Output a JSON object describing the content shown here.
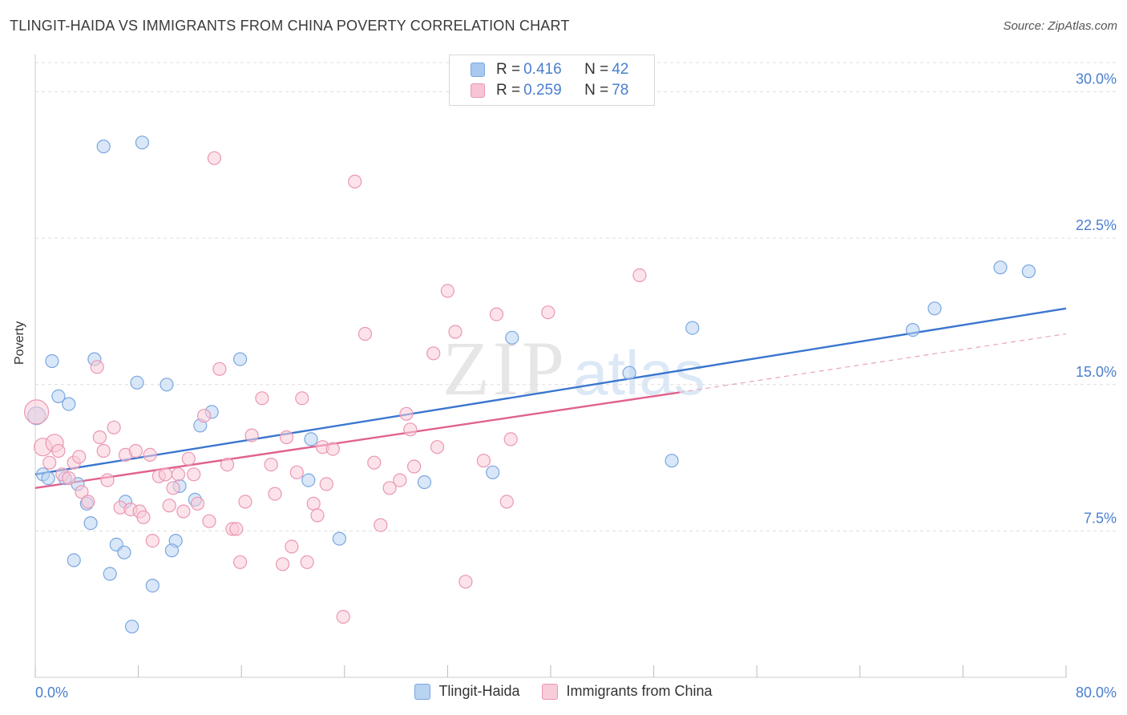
{
  "header": {
    "title": "TLINGIT-HAIDA VS IMMIGRANTS FROM CHINA POVERTY CORRELATION CHART",
    "source": "Source: ZipAtlas.com"
  },
  "watermark": {
    "zip": "ZIP",
    "atlas": "atlas"
  },
  "legend_top": {
    "rows": [
      {
        "r_label": "R =",
        "r_value": "0.416",
        "n_label": "N =",
        "n_value": "42",
        "color": "#a9c8f0",
        "border": "#7aa7e0"
      },
      {
        "r_label": "R =",
        "r_value": "0.259",
        "n_label": "N =",
        "n_value": "78",
        "color": "#f8c3d3",
        "border": "#ea97b2"
      }
    ]
  },
  "legend_bottom": {
    "items": [
      {
        "label": "Tlingit-Haida",
        "color": "#b9d3f3",
        "border": "#7aa7e0"
      },
      {
        "label": "Immigrants from China",
        "color": "#f9ccd9",
        "border": "#ea97b2"
      }
    ]
  },
  "chart_data": {
    "type": "scatter",
    "title": "TLINGIT-HAIDA VS IMMIGRANTS FROM CHINA POVERTY CORRELATION CHART",
    "xlabel": "",
    "ylabel": "Poverty",
    "xlim": [
      0,
      80
    ],
    "ylim": [
      0,
      31.5
    ],
    "x_tick_labels": [
      "0.0%",
      "80.0%"
    ],
    "y_ticks": [
      7.5,
      15.0,
      22.5,
      30.0
    ],
    "y_tick_labels": [
      "7.5%",
      "15.0%",
      "22.5%",
      "30.0%"
    ],
    "grid": "horizontal-dashed",
    "legend_position": "top-center",
    "series": [
      {
        "name": "Tlingit-Haida",
        "color": "#7aa7e0",
        "fill": "#b9d3f3",
        "trend": {
          "x": [
            0,
            80
          ],
          "y": [
            10.4,
            18.9
          ],
          "color": "#3a76cf"
        },
        "points": [
          [
            0.1,
            13.4
          ],
          [
            0.6,
            10.4
          ],
          [
            1.3,
            16.2
          ],
          [
            1.0,
            10.2
          ],
          [
            1.8,
            14.4
          ],
          [
            2.6,
            14.0
          ],
          [
            2.3,
            10.2
          ],
          [
            3.3,
            9.9
          ],
          [
            3.0,
            6.0
          ],
          [
            4.0,
            8.9
          ],
          [
            4.6,
            16.3
          ],
          [
            4.3,
            7.9
          ],
          [
            5.3,
            27.2
          ],
          [
            5.8,
            5.3
          ],
          [
            6.3,
            6.8
          ],
          [
            7.0,
            9.0
          ],
          [
            6.9,
            6.4
          ],
          [
            7.9,
            15.1
          ],
          [
            8.3,
            27.4
          ],
          [
            7.5,
            2.6
          ],
          [
            9.1,
            4.7
          ],
          [
            10.2,
            15.0
          ],
          [
            11.2,
            9.8
          ],
          [
            10.9,
            7.0
          ],
          [
            10.6,
            6.5
          ],
          [
            12.4,
            9.1
          ],
          [
            12.8,
            12.9
          ],
          [
            13.7,
            13.6
          ],
          [
            15.9,
            16.3
          ],
          [
            21.4,
            12.2
          ],
          [
            21.2,
            10.1
          ],
          [
            23.6,
            7.1
          ],
          [
            30.2,
            10.0
          ],
          [
            35.5,
            10.5
          ],
          [
            37.0,
            17.4
          ],
          [
            46.1,
            15.6
          ],
          [
            49.4,
            11.1
          ],
          [
            51.0,
            17.9
          ],
          [
            68.1,
            17.8
          ],
          [
            69.8,
            18.9
          ],
          [
            74.9,
            21.0
          ],
          [
            77.1,
            20.8
          ]
        ]
      },
      {
        "name": "Immigrants from China",
        "color": "#ea97b2",
        "fill": "#f9ccd9",
        "trend": {
          "x": [
            0,
            50
          ],
          "y": [
            9.7,
            14.6
          ],
          "color": "#e0628e"
        },
        "trend_extension": {
          "x": [
            50,
            80
          ],
          "y": [
            14.6,
            17.6
          ],
          "color": "#e8a3ba"
        },
        "points": [
          [
            0.1,
            13.6
          ],
          [
            0.6,
            11.8
          ],
          [
            1.1,
            11.0
          ],
          [
            1.5,
            12.0
          ],
          [
            1.8,
            11.6
          ],
          [
            2.1,
            10.4
          ],
          [
            2.6,
            10.2
          ],
          [
            3.0,
            11.0
          ],
          [
            3.4,
            11.3
          ],
          [
            3.6,
            9.5
          ],
          [
            4.1,
            9.0
          ],
          [
            4.8,
            15.9
          ],
          [
            5.0,
            12.3
          ],
          [
            5.3,
            11.6
          ],
          [
            5.6,
            10.1
          ],
          [
            6.1,
            12.8
          ],
          [
            6.6,
            8.7
          ],
          [
            7.0,
            11.4
          ],
          [
            7.4,
            8.6
          ],
          [
            7.8,
            11.6
          ],
          [
            8.1,
            8.5
          ],
          [
            8.4,
            8.2
          ],
          [
            8.9,
            11.4
          ],
          [
            9.1,
            7.0
          ],
          [
            9.6,
            10.3
          ],
          [
            10.1,
            10.4
          ],
          [
            10.4,
            8.8
          ],
          [
            10.7,
            9.7
          ],
          [
            11.1,
            10.4
          ],
          [
            11.5,
            8.5
          ],
          [
            11.9,
            11.2
          ],
          [
            12.3,
            10.4
          ],
          [
            12.6,
            8.9
          ],
          [
            13.1,
            13.4
          ],
          [
            13.5,
            8.0
          ],
          [
            13.9,
            26.6
          ],
          [
            14.3,
            15.8
          ],
          [
            14.9,
            10.9
          ],
          [
            15.3,
            7.6
          ],
          [
            15.6,
            7.6
          ],
          [
            15.9,
            5.9
          ],
          [
            16.3,
            9.0
          ],
          [
            16.8,
            12.4
          ],
          [
            17.6,
            14.3
          ],
          [
            18.3,
            10.9
          ],
          [
            18.6,
            9.4
          ],
          [
            19.2,
            5.8
          ],
          [
            19.5,
            12.3
          ],
          [
            19.9,
            6.7
          ],
          [
            20.3,
            10.5
          ],
          [
            20.7,
            14.3
          ],
          [
            21.1,
            5.9
          ],
          [
            21.6,
            8.9
          ],
          [
            21.9,
            8.3
          ],
          [
            22.3,
            11.8
          ],
          [
            22.6,
            9.9
          ],
          [
            23.1,
            11.7
          ],
          [
            23.9,
            3.1
          ],
          [
            24.8,
            25.4
          ],
          [
            25.6,
            17.6
          ],
          [
            26.3,
            11.0
          ],
          [
            26.8,
            7.8
          ],
          [
            27.5,
            9.7
          ],
          [
            28.3,
            10.1
          ],
          [
            28.8,
            13.5
          ],
          [
            29.1,
            12.7
          ],
          [
            29.4,
            10.8
          ],
          [
            30.9,
            16.6
          ],
          [
            31.2,
            11.8
          ],
          [
            32.0,
            19.8
          ],
          [
            32.6,
            17.7
          ],
          [
            33.4,
            4.9
          ],
          [
            34.8,
            11.1
          ],
          [
            35.8,
            18.6
          ],
          [
            36.6,
            9.0
          ],
          [
            36.9,
            12.2
          ],
          [
            39.8,
            18.7
          ],
          [
            46.9,
            20.6
          ]
        ]
      }
    ]
  }
}
